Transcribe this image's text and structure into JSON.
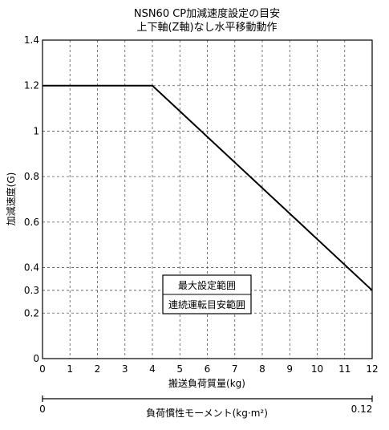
{
  "chart_data": {
    "type": "line",
    "title": "NSN60 CP加減速度設定の目安",
    "subtitle": "上下軸(Z軸)なし水平移動動作",
    "xlabel": "搬送負荷質量(kg)",
    "ylabel": "加減速度(G)",
    "x_ticks": [
      "0",
      "1",
      "2",
      "3",
      "4",
      "5",
      "6",
      "7",
      "8",
      "9",
      "10",
      "11",
      "12"
    ],
    "y_ticks": [
      {
        "value": 0,
        "label": "0"
      },
      {
        "value": 0.2,
        "label": "0.2"
      },
      {
        "value": 0.3,
        "label": "0.3"
      },
      {
        "value": 0.4,
        "label": "0.4"
      },
      {
        "value": 0.6,
        "label": "0.6"
      },
      {
        "value": 0.8,
        "label": "0.8"
      },
      {
        "value": 1.0,
        "label": "1"
      },
      {
        "value": 1.2,
        "label": "1.2"
      },
      {
        "value": 1.4,
        "label": "1.4"
      }
    ],
    "xlim": [
      0,
      12
    ],
    "ylim": [
      0,
      1.4
    ],
    "grid": true,
    "series": [
      {
        "x": [
          0,
          4,
          12
        ],
        "y": [
          1.2,
          1.2,
          0.3
        ]
      }
    ],
    "legend": [
      "最大設定範囲",
      "連続運転目安範囲"
    ],
    "legend_placement": "center-left",
    "secondary_axis": {
      "label": "負荷慣性モーメント(kg·m²)",
      "start_label": "0",
      "end_label": "0.12",
      "range": [
        0,
        0.12
      ]
    }
  }
}
